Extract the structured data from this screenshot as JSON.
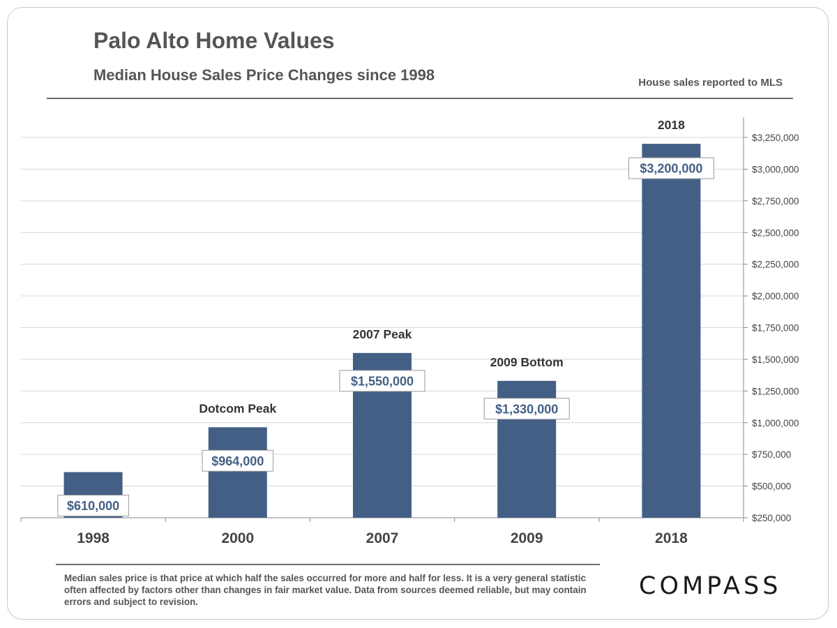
{
  "header": {
    "title": "Palo Alto Home Values",
    "subtitle": "Median House Sales Price Changes since 1998",
    "source_note": "House sales reported to MLS"
  },
  "footer": {
    "footnote": "Median sales price is that price at which half the sales occurred for more and half for less. It is a very general statistic often affected by factors other than changes in fair market value. Data from sources deemed reliable, but may contain errors and subject to revision.",
    "logo_text": "COMPASS"
  },
  "colors": {
    "bar": "#435f86",
    "label_text": "#435f86",
    "text": "#555555",
    "grid": "#d6d6d6"
  },
  "chart_data": {
    "type": "bar",
    "title": "Palo Alto Home Values",
    "subtitle": "Median House Sales Price Changes since 1998",
    "categories": [
      "1998",
      "2000",
      "2007",
      "2009",
      "2018"
    ],
    "values": [
      610000,
      964000,
      1550000,
      1330000,
      3200000
    ],
    "value_labels": [
      "$610,000",
      "$964,000",
      "$1,550,000",
      "$1,330,000",
      "$3,200,000"
    ],
    "annotations": [
      "",
      "Dotcom Peak",
      "2007 Peak",
      "2009 Bottom",
      "2018"
    ],
    "ylim": [
      250000,
      3250000
    ],
    "yticks": [
      250000,
      500000,
      750000,
      1000000,
      1250000,
      1500000,
      1750000,
      2000000,
      2250000,
      2500000,
      2750000,
      3000000,
      3250000
    ],
    "ytick_labels": [
      "$250,000",
      "$500,000",
      "$750,000",
      "$1,000,000",
      "$1,250,000",
      "$1,500,000",
      "$1,750,000",
      "$2,000,000",
      "$2,250,000",
      "$2,500,000",
      "$2,750,000",
      "$3,000,000",
      "$3,250,000"
    ],
    "y_axis_side": "right",
    "grid": true,
    "legend": false
  }
}
